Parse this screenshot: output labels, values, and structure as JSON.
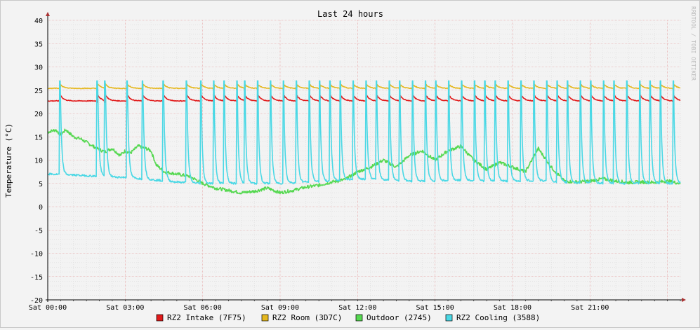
{
  "chart_data": {
    "type": "line",
    "title": "Last 24 hours",
    "ylabel": "Temperature (°C)",
    "watermark": "RRDTOOL / TOBI OETIKER",
    "ylim": [
      -20,
      40
    ],
    "xlim_hours": [
      0,
      24.5
    ],
    "y_ticks": [
      40,
      35,
      30,
      25,
      20,
      15,
      10,
      5,
      0,
      -5,
      -10,
      -15,
      -20
    ],
    "x_ticks": [
      {
        "hour": 0,
        "label": "Sat 00:00"
      },
      {
        "hour": 3,
        "label": "Sat 03:00"
      },
      {
        "hour": 6,
        "label": "Sat 06:00"
      },
      {
        "hour": 9,
        "label": "Sat 09:00"
      },
      {
        "hour": 12,
        "label": "Sat 12:00"
      },
      {
        "hour": 15,
        "label": "Sat 15:00"
      },
      {
        "hour": 18,
        "label": "Sat 18:00"
      },
      {
        "hour": 21,
        "label": "Sat 21:00"
      }
    ],
    "grid": true,
    "legend_position": "bottom",
    "series": [
      {
        "name": "RZ2 Intake (7F75)",
        "color": "#e11a1a",
        "kind": "intake",
        "base": 22.7,
        "peak": 24.0
      },
      {
        "name": "RZ2 Room (3D7C)",
        "color": "#e5b820",
        "kind": "room",
        "base": 25.4,
        "peak": 26.3
      },
      {
        "name": "Outdoor (2745)",
        "color": "#55d850",
        "kind": "outdoor",
        "points": [
          [
            0,
            16
          ],
          [
            0.3,
            16.5
          ],
          [
            0.5,
            15.5
          ],
          [
            0.7,
            16.5
          ],
          [
            1.0,
            15
          ],
          [
            1.3,
            14.5
          ],
          [
            1.6,
            13.5
          ],
          [
            1.9,
            12.5
          ],
          [
            2.2,
            11.8
          ],
          [
            2.5,
            12.5
          ],
          [
            2.8,
            11
          ],
          [
            3.0,
            12
          ],
          [
            3.2,
            11.5
          ],
          [
            3.5,
            13
          ],
          [
            3.8,
            12.5
          ],
          [
            4.0,
            12
          ],
          [
            4.2,
            9
          ],
          [
            4.5,
            7.5
          ],
          [
            5.0,
            7
          ],
          [
            5.5,
            6.5
          ],
          [
            6.0,
            5
          ],
          [
            6.5,
            4
          ],
          [
            7.0,
            3.5
          ],
          [
            7.5,
            3
          ],
          [
            8.0,
            3.3
          ],
          [
            8.5,
            4
          ],
          [
            9.0,
            3
          ],
          [
            9.5,
            3.5
          ],
          [
            10.0,
            4.2
          ],
          [
            10.5,
            4.6
          ],
          [
            11.0,
            5.3
          ],
          [
            11.5,
            5.8
          ],
          [
            12.0,
            7.5
          ],
          [
            12.5,
            8.5
          ],
          [
            13.0,
            10
          ],
          [
            13.5,
            8.5
          ],
          [
            14.0,
            11
          ],
          [
            14.5,
            12
          ],
          [
            15.0,
            10
          ],
          [
            15.5,
            12
          ],
          [
            16.0,
            13
          ],
          [
            16.5,
            10
          ],
          [
            17.0,
            8
          ],
          [
            17.5,
            9.5
          ],
          [
            18.0,
            8.5
          ],
          [
            18.5,
            7.5
          ],
          [
            19.0,
            12.5
          ],
          [
            19.5,
            8.5
          ],
          [
            20.0,
            5.5
          ],
          [
            20.5,
            5.3
          ],
          [
            21.0,
            5.5
          ],
          [
            21.5,
            6
          ],
          [
            22.0,
            5.5
          ],
          [
            22.5,
            5.2
          ],
          [
            23.0,
            5.3
          ],
          [
            23.5,
            5.2
          ],
          [
            24.0,
            5.5
          ],
          [
            24.5,
            5
          ]
        ]
      },
      {
        "name": "RZ2 Cooling (3588)",
        "color": "#4ad8e5",
        "kind": "cooling",
        "peak": 27,
        "baseline": [
          [
            0,
            7
          ],
          [
            1.0,
            6.8
          ],
          [
            2.0,
            6.5
          ],
          [
            3.0,
            6.3
          ],
          [
            4.0,
            5.8
          ],
          [
            5.0,
            5.3
          ],
          [
            6.0,
            5
          ],
          [
            7.0,
            5
          ],
          [
            8.0,
            5
          ],
          [
            9.0,
            5
          ],
          [
            10.0,
            5.3
          ],
          [
            11.0,
            5.5
          ],
          [
            12.0,
            6
          ],
          [
            13.0,
            5.8
          ],
          [
            14.0,
            5.5
          ],
          [
            15.0,
            5.5
          ],
          [
            16.0,
            5.7
          ],
          [
            17.0,
            5.5
          ],
          [
            18.0,
            5.5
          ],
          [
            19.0,
            5.6
          ],
          [
            20.0,
            5.2
          ],
          [
            21.0,
            5.1
          ],
          [
            22.0,
            5
          ],
          [
            23.0,
            5
          ],
          [
            24.0,
            5
          ],
          [
            24.5,
            5
          ]
        ],
        "spikes_hours": [
          0.45,
          1.9,
          2.2,
          3.05,
          3.65,
          4.45,
          5.35,
          5.9,
          6.4,
          6.8,
          7.3,
          7.6,
          8.1,
          8.6,
          9.1,
          9.6,
          10.1,
          10.5,
          10.9,
          11.3,
          11.8,
          12.3,
          12.7,
          13.2,
          13.6,
          14.1,
          14.6,
          15.0,
          15.5,
          16.0,
          16.5,
          16.9,
          17.3,
          17.8,
          18.3,
          18.8,
          19.3,
          19.7,
          20.1,
          20.6,
          21.0,
          21.5,
          21.9,
          22.4,
          22.9,
          23.3,
          23.7,
          24.2
        ]
      }
    ]
  }
}
